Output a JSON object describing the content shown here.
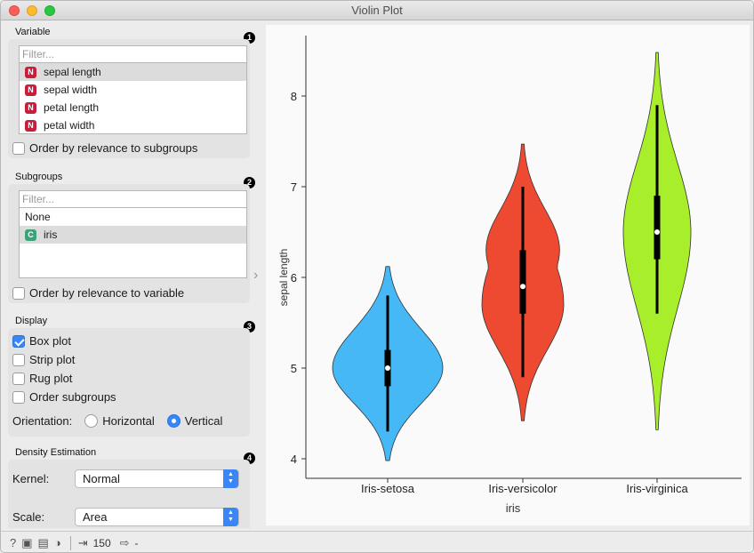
{
  "window": {
    "title": "Violin Plot"
  },
  "variable": {
    "title": "Variable",
    "badge": "1",
    "filter_placeholder": "Filter...",
    "items": [
      {
        "tag": "N",
        "label": "sepal length",
        "selected": true
      },
      {
        "tag": "N",
        "label": "sepal width",
        "selected": false
      },
      {
        "tag": "N",
        "label": "petal length",
        "selected": false
      },
      {
        "tag": "N",
        "label": "petal width",
        "selected": false
      }
    ],
    "order_label": "Order by relevance to subgroups"
  },
  "subgroups": {
    "title": "Subgroups",
    "badge": "2",
    "filter_placeholder": "Filter...",
    "items": [
      {
        "tag": "",
        "label": "None",
        "selected": false
      },
      {
        "tag": "C",
        "label": "iris",
        "selected": true
      }
    ],
    "order_label": "Order by relevance to variable"
  },
  "display": {
    "title": "Display",
    "badge": "3",
    "box_plot": {
      "label": "Box plot",
      "checked": true
    },
    "strip_plot": {
      "label": "Strip plot",
      "checked": false
    },
    "rug_plot": {
      "label": "Rug plot",
      "checked": false
    },
    "order_subgroups": {
      "label": "Order subgroups",
      "checked": false
    },
    "orientation_label": "Orientation:",
    "horizontal_label": "Horizontal",
    "vertical_label": "Vertical",
    "orientation": "Vertical"
  },
  "density": {
    "title": "Density Estimation",
    "badge": "4",
    "kernel_label": "Kernel:",
    "kernel_value": "Normal",
    "scale_label": "Scale:",
    "scale_value": "Area"
  },
  "statusbar": {
    "count": "150",
    "output": "-"
  },
  "colors": {
    "setosa": "#46b8f5",
    "versicolor": "#ee4a32",
    "virginica": "#a9ee2a",
    "accent": "#3b86f7"
  },
  "chart_data": {
    "type": "violin",
    "xlabel": "iris",
    "ylabel": "sepal length",
    "ylim": [
      3.9,
      9.1
    ],
    "yticks": [
      4,
      5,
      6,
      7,
      8
    ],
    "categories": [
      "Iris-setosa",
      "Iris-versicolor",
      "Iris-virginica"
    ],
    "series": [
      {
        "category": "Iris-setosa",
        "color": "#46b8f5",
        "min": 4.3,
        "q1": 4.8,
        "median": 5.0,
        "q3": 5.2,
        "max": 5.8,
        "density_min": 3.98,
        "density_max": 6.12,
        "density_mode": 5.0
      },
      {
        "category": "Iris-versicolor",
        "color": "#ee4a32",
        "min": 4.9,
        "q1": 5.6,
        "median": 5.9,
        "q3": 6.3,
        "max": 7.0,
        "density_min": 4.42,
        "density_max": 7.47,
        "density_mode": 5.7
      },
      {
        "category": "Iris-virginica",
        "color": "#a9ee2a",
        "min": 5.6,
        "q1": 6.2,
        "median": 6.5,
        "q3": 6.9,
        "max": 7.9,
        "density_min": 4.32,
        "density_max": 8.48,
        "density_mode": 6.5
      }
    ]
  }
}
